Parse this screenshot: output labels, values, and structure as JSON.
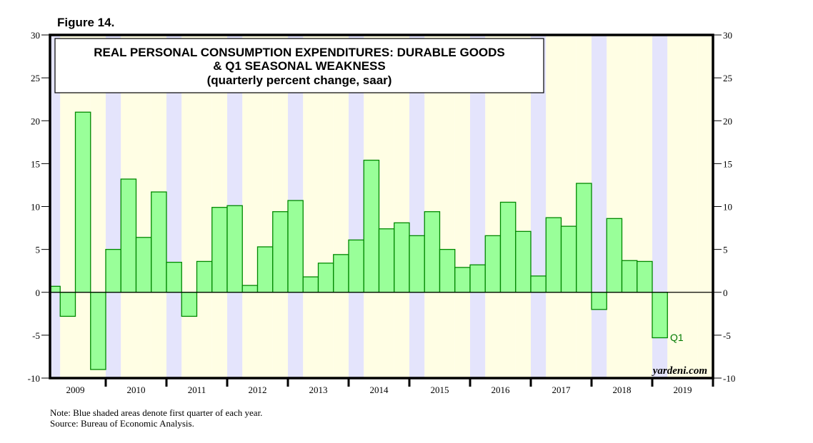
{
  "figure_label": "Figure 14.",
  "chart_data": {
    "type": "bar",
    "title": "REAL PERSONAL CONSUMPTION EXPENDITURES: DURABLE GOODS",
    "title_line2": "& Q1 SEASONAL WEAKNESS",
    "subtitle": "(quarterly percent change, saar)",
    "xlabel": "",
    "ylabel": "",
    "ylim": [
      -10,
      30
    ],
    "yticks": [
      -10,
      -5,
      0,
      5,
      10,
      15,
      20,
      25,
      30
    ],
    "ytick_labels": [
      "-10",
      "-5",
      "0",
      "5",
      "10",
      "15",
      "20",
      "25",
      "30"
    ],
    "year_labels": [
      "2009",
      "2010",
      "2011",
      "2012",
      "2013",
      "2014",
      "2015",
      "2016",
      "2017",
      "2018",
      "2019"
    ],
    "categories": [
      "2009Q1",
      "2009Q2",
      "2009Q3",
      "2009Q4",
      "2010Q1",
      "2010Q2",
      "2010Q3",
      "2010Q4",
      "2011Q1",
      "2011Q2",
      "2011Q3",
      "2011Q4",
      "2012Q1",
      "2012Q2",
      "2012Q3",
      "2012Q4",
      "2013Q1",
      "2013Q2",
      "2013Q3",
      "2013Q4",
      "2014Q1",
      "2014Q2",
      "2014Q3",
      "2014Q4",
      "2015Q1",
      "2015Q2",
      "2015Q3",
      "2015Q4",
      "2016Q1",
      "2016Q2",
      "2016Q3",
      "2016Q4",
      "2017Q1",
      "2017Q2",
      "2017Q3",
      "2017Q4",
      "2018Q1",
      "2018Q2",
      "2018Q3",
      "2018Q4",
      "2019Q1"
    ],
    "values": [
      0.7,
      -2.8,
      21.0,
      -9.0,
      5.0,
      13.2,
      6.4,
      11.7,
      3.5,
      -2.8,
      3.6,
      9.9,
      10.1,
      0.8,
      5.3,
      9.4,
      10.7,
      1.8,
      3.4,
      4.4,
      6.1,
      15.4,
      7.4,
      8.1,
      6.6,
      9.4,
      5.0,
      2.9,
      3.2,
      6.6,
      10.5,
      7.1,
      1.9,
      8.7,
      7.7,
      12.7,
      -2.0,
      8.6,
      3.7,
      3.6,
      -5.3
    ],
    "shading": "Blue bands mark Q1 of each year; other quarters shaded light yellow",
    "annotation": "Q1",
    "annotation_target": "2019Q1",
    "grid": false,
    "zero_line": true,
    "colors": {
      "bar_fill": "#99ff99",
      "bar_edge": "#008800",
      "q1_band": "#e4e4fc",
      "other_band": "#fffee4",
      "annotation": "#007a00"
    }
  },
  "watermark": "yardeni.com",
  "notes": [
    "Note: Blue shaded areas denote first quarter of each year.",
    "Source: Bureau of Economic Analysis."
  ]
}
